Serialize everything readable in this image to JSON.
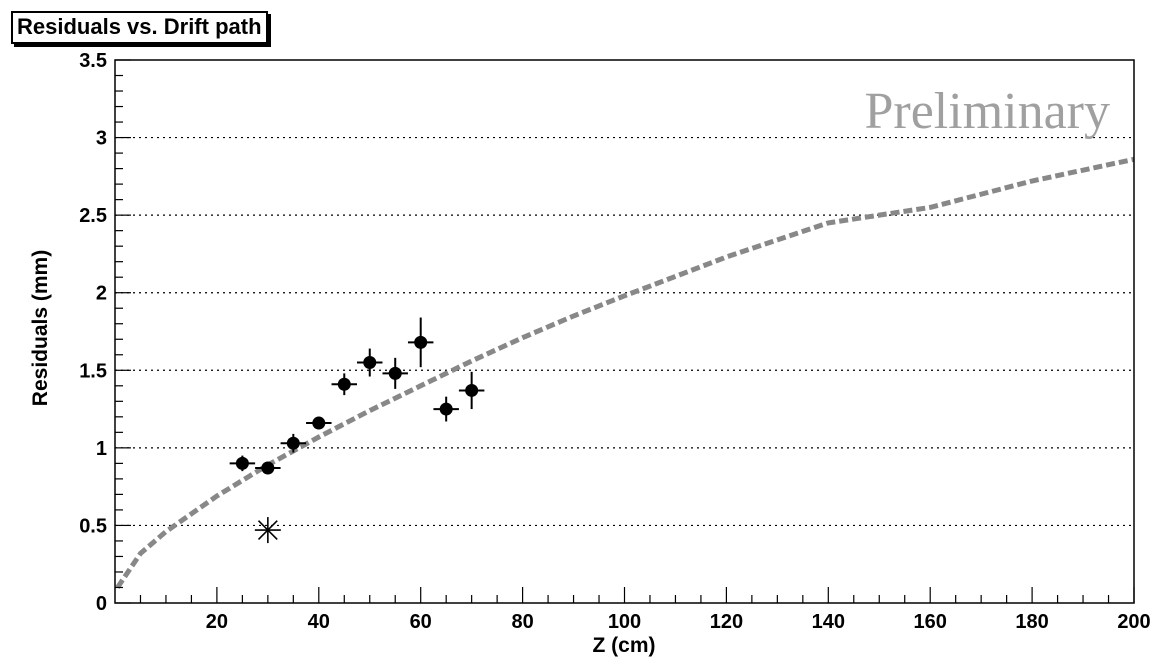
{
  "chart_data": {
    "type": "scatter",
    "title": "Residuals vs. Drift path",
    "xlabel": "Z (cm)",
    "ylabel": "Residuals (mm)",
    "annotation": "Preliminary",
    "xlim": [
      0,
      200
    ],
    "ylim": [
      0,
      3.5
    ],
    "x_ticks": [
      20,
      40,
      60,
      80,
      100,
      120,
      140,
      160,
      180,
      200
    ],
    "y_ticks": [
      0,
      0.5,
      1,
      1.5,
      2,
      2.5,
      3,
      3.5
    ],
    "x_tick_labels": [
      "20",
      "40",
      "60",
      "80",
      "100",
      "120",
      "140",
      "160",
      "180",
      "200"
    ],
    "y_tick_labels": [
      "0",
      "0.5",
      "1",
      "1.5",
      "2",
      "2.5",
      "3",
      "3.5"
    ],
    "grid": "horizontal-dotted",
    "series": [
      {
        "marker": "filled-circle",
        "color": "#000000",
        "x": [
          25,
          30,
          35,
          40,
          45,
          50,
          55,
          60,
          65,
          70
        ],
        "y": [
          0.9,
          0.87,
          1.03,
          1.16,
          1.41,
          1.55,
          1.48,
          1.68,
          1.25,
          1.37
        ],
        "x_err": [
          2.5,
          2.5,
          2.5,
          2.5,
          2.5,
          2.5,
          2.5,
          2.5,
          2.5,
          2.5
        ],
        "y_err": [
          0.05,
          0.04,
          0.06,
          0.04,
          0.07,
          0.09,
          0.1,
          0.16,
          0.08,
          0.12
        ]
      },
      {
        "marker": "asterisk",
        "color": "#000000",
        "x": [
          30
        ],
        "y": [
          0.47
        ]
      },
      {
        "style": "dashed-curve",
        "color": "#888888",
        "x": [
          0.5,
          5,
          10,
          20,
          30,
          40,
          50,
          60,
          70,
          80,
          90,
          100,
          120,
          140,
          160,
          180,
          200
        ],
        "y": [
          0.1,
          0.32,
          0.46,
          0.69,
          0.89,
          1.07,
          1.24,
          1.4,
          1.56,
          1.71,
          1.85,
          1.98,
          2.23,
          2.45,
          2.55,
          2.72,
          2.86
        ]
      }
    ]
  }
}
